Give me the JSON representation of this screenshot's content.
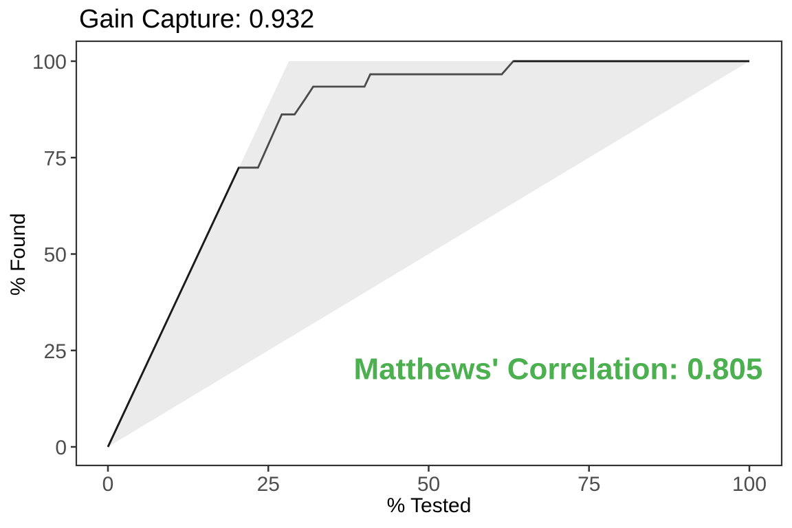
{
  "chart_data": {
    "type": "line",
    "title": "Gain Capture: 0.932",
    "xlabel": "% Tested",
    "ylabel": "% Found",
    "xlim": [
      0,
      100
    ],
    "ylim": [
      0,
      100
    ],
    "x_ticks": [
      0,
      25,
      50,
      75,
      100
    ],
    "y_ticks": [
      0,
      25,
      50,
      75,
      100
    ],
    "grid": false,
    "legend": false,
    "panel_border_color": "#333333",
    "tick_color": "#333333",
    "tick_label_color": "#4d4d4d",
    "series": [
      {
        "name": "gain-curve",
        "color": "#4b4b4b",
        "points": [
          [
            0,
            0
          ],
          [
            20.4,
            72.4
          ],
          [
            23.4,
            72.4
          ],
          [
            27.1,
            86.2
          ],
          [
            29.1,
            86.2
          ],
          [
            30.7,
            90.1
          ],
          [
            32,
            93.4
          ],
          [
            40,
            93.4
          ],
          [
            40.9,
            96.6
          ],
          [
            61.4,
            96.6
          ],
          [
            63.2,
            100
          ],
          [
            100,
            100
          ]
        ]
      },
      {
        "name": "ideal-overlap-rise",
        "color": "#1a1a1a",
        "points": [
          [
            0,
            0
          ],
          [
            20.4,
            72.4
          ]
        ]
      },
      {
        "name": "ideal-overlap-top",
        "color": "#1a1a1a",
        "points": [
          [
            63.2,
            100
          ],
          [
            100,
            100
          ]
        ]
      }
    ],
    "shaded_region": {
      "name": "ideal-vs-baseline-region",
      "fill": "#ebebeb",
      "points": [
        [
          0,
          0
        ],
        [
          28.2,
          100
        ],
        [
          100,
          100
        ]
      ]
    },
    "annotations": [
      {
        "text": "Matthews' Correlation: 0.805",
        "x": 70.2,
        "y": 17.6,
        "color": "#4caf50"
      }
    ]
  }
}
